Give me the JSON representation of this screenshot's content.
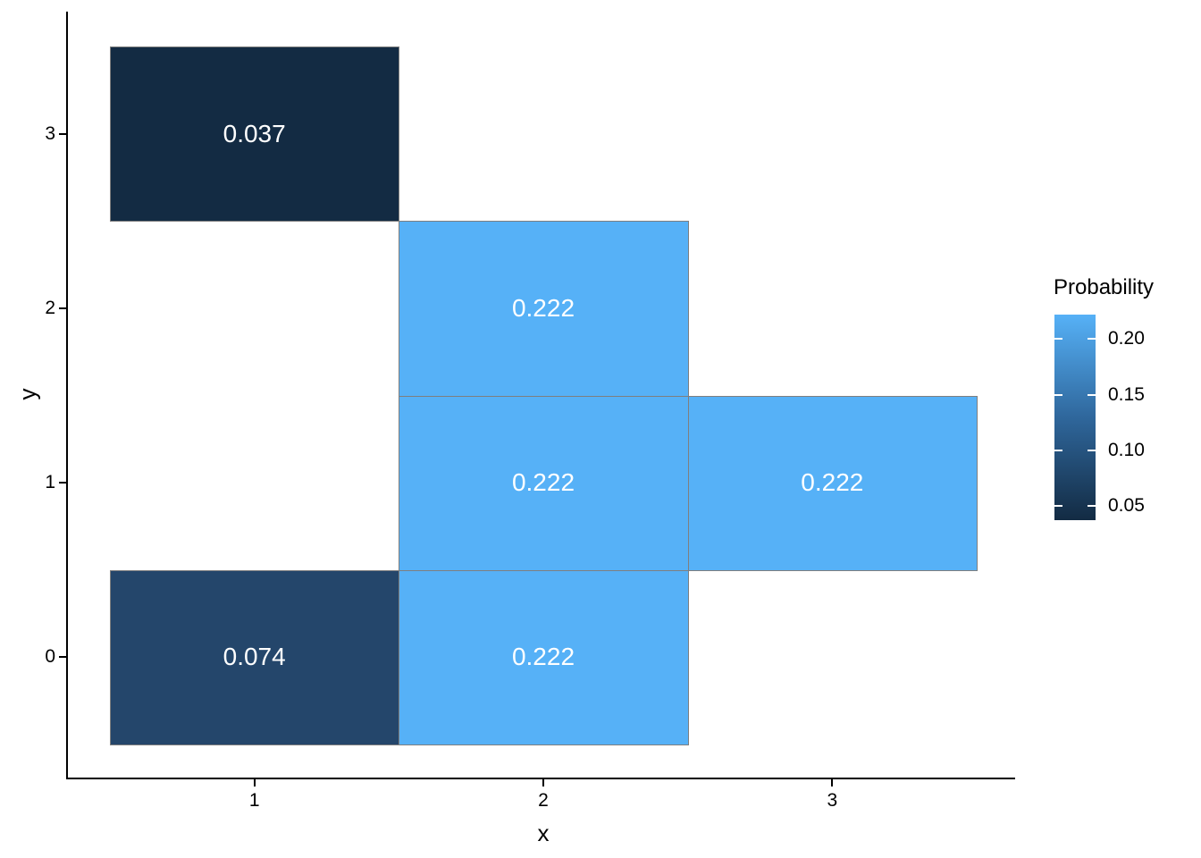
{
  "chart_data": {
    "type": "heatmap",
    "title": "",
    "xlabel": "x",
    "ylabel": "y",
    "x_ticks": [
      1,
      2,
      3
    ],
    "y_ticks": [
      0,
      1,
      2,
      3
    ],
    "x_domain": [
      0.5,
      3.5
    ],
    "y_domain": [
      -0.5,
      3.5
    ],
    "grid": false,
    "panel_background": "#ffffff",
    "axis_color": "#000000",
    "text_color": "#000000",
    "tile_border_color": "#7F7F7F",
    "tile_label_color": "#ffffff",
    "tiles": [
      {
        "x": 1,
        "y": 3,
        "value": 0.037,
        "label": "0.037",
        "color": "#132B43"
      },
      {
        "x": 2,
        "y": 2,
        "value": 0.222,
        "label": "0.222",
        "color": "#56B1F7"
      },
      {
        "x": 2,
        "y": 1,
        "value": 0.222,
        "label": "0.222",
        "color": "#56B1F7"
      },
      {
        "x": 3,
        "y": 1,
        "value": 0.222,
        "label": "0.222",
        "color": "#56B1F7"
      },
      {
        "x": 1,
        "y": 0,
        "value": 0.074,
        "label": "0.074",
        "color": "#24466B"
      },
      {
        "x": 2,
        "y": 0,
        "value": 0.222,
        "label": "0.222",
        "color": "#56B1F7"
      }
    ],
    "legend": {
      "title": "Probability",
      "position": "right",
      "range": [
        0.037,
        0.222
      ],
      "tick_values": [
        0.2,
        0.15,
        0.1,
        0.05
      ],
      "tick_labels": [
        "0.20",
        "0.15",
        "0.10",
        "0.05"
      ],
      "gradient_high": "#56B1F7",
      "gradient_mid": "#2F679C",
      "gradient_low": "#132B43"
    }
  }
}
